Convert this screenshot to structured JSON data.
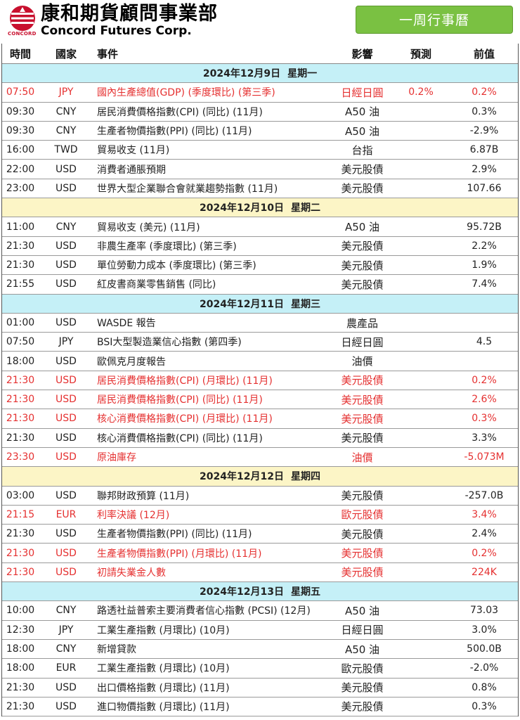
{
  "brand": {
    "name_cn": "康和期貨顧問事業部",
    "name_en": "Concord Futures Corp.",
    "logo_text": "CONCORD",
    "logo_color": "#c8102e"
  },
  "week_button": "一周行事曆",
  "columns": {
    "time": "時間",
    "country": "國家",
    "event": "事件",
    "impact": "影響",
    "forecast": "預測",
    "previous": "前值"
  },
  "days": [
    {
      "date": "2024年12月9日",
      "weekday": "星期一",
      "rows": [
        {
          "time": "07:50",
          "country": "JPY",
          "event": "國內生產總值(GDP) (季度環比) (第三季)",
          "impact": "日經日圓",
          "forecast": "0.2%",
          "previous": "0.2%",
          "highlight": true
        },
        {
          "time": "09:30",
          "country": "CNY",
          "event": "居民消費價格指數(CPI) (同比) (11月)",
          "impact": "A50 油",
          "forecast": "",
          "previous": "0.3%",
          "highlight": false
        },
        {
          "time": "09:30",
          "country": "CNY",
          "event": "生產者物價指數(PPI) (同比) (11月)",
          "impact": "A50 油",
          "forecast": "",
          "previous": "-2.9%",
          "highlight": false
        },
        {
          "time": "16:00",
          "country": "TWD",
          "event": "貿易收支 (11月)",
          "impact": "台指",
          "forecast": "",
          "previous": "6.87B",
          "highlight": false
        },
        {
          "time": "22:00",
          "country": "USD",
          "event": "消費者通脹預期",
          "impact": "美元股債",
          "forecast": "",
          "previous": "2.9%",
          "highlight": false
        },
        {
          "time": "23:00",
          "country": "USD",
          "event": "世界大型企業聯合會就業趨勢指數 (11月)",
          "impact": "美元股債",
          "forecast": "",
          "previous": "107.66",
          "highlight": false
        }
      ]
    },
    {
      "date": "2024年12月10日",
      "weekday": "星期二",
      "rows": [
        {
          "time": "11:00",
          "country": "CNY",
          "event": "貿易收支 (美元) (11月)",
          "impact": "A50 油",
          "forecast": "",
          "previous": "95.72B",
          "highlight": false
        },
        {
          "time": "21:30",
          "country": "USD",
          "event": "非農生產率 (季度環比) (第三季)",
          "impact": "美元股債",
          "forecast": "",
          "previous": "2.2%",
          "highlight": false
        },
        {
          "time": "21:30",
          "country": "USD",
          "event": "單位勞動力成本 (季度環比) (第三季)",
          "impact": "美元股債",
          "forecast": "",
          "previous": "1.9%",
          "highlight": false
        },
        {
          "time": "21:55",
          "country": "USD",
          "event": "紅皮書商業零售銷售 (同比)",
          "impact": "美元股債",
          "forecast": "",
          "previous": "7.4%",
          "highlight": false
        }
      ]
    },
    {
      "date": "2024年12月11日",
      "weekday": "星期三",
      "rows": [
        {
          "time": "01:00",
          "country": "USD",
          "event": "WASDE 報告",
          "impact": "農產品",
          "forecast": "",
          "previous": "",
          "highlight": false
        },
        {
          "time": "07:50",
          "country": "JPY",
          "event": "BSI大型製造業信心指數 (第四季)",
          "impact": "日經日圓",
          "forecast": "",
          "previous": "4.5",
          "highlight": false
        },
        {
          "time": "18:00",
          "country": "USD",
          "event": "歐佩克月度報告",
          "impact": "油價",
          "forecast": "",
          "previous": "",
          "highlight": false
        },
        {
          "time": "21:30",
          "country": "USD",
          "event": "居民消費價格指數(CPI) (月環比) (11月)",
          "impact": "美元股債",
          "forecast": "",
          "previous": "0.2%",
          "highlight": true
        },
        {
          "time": "21:30",
          "country": "USD",
          "event": "居民消費價格指數(CPI) (同比) (11月)",
          "impact": "美元股債",
          "forecast": "",
          "previous": "2.6%",
          "highlight": true
        },
        {
          "time": "21:30",
          "country": "USD",
          "event": "核心消費價格指數(CPI) (月環比) (11月)",
          "impact": "美元股債",
          "forecast": "",
          "previous": "0.3%",
          "highlight": true
        },
        {
          "time": "21:30",
          "country": "USD",
          "event": "核心消費價格指數(CPI) (同比) (11月)",
          "impact": "美元股債",
          "forecast": "",
          "previous": "3.3%",
          "highlight": false
        },
        {
          "time": "23:30",
          "country": "USD",
          "event": "原油庫存",
          "impact": "油價",
          "forecast": "",
          "previous": "-5.073M",
          "highlight": true
        }
      ]
    },
    {
      "date": "2024年12月12日",
      "weekday": "星期四",
      "rows": [
        {
          "time": "03:00",
          "country": "USD",
          "event": "聯邦財政預算 (11月)",
          "impact": "美元股債",
          "forecast": "",
          "previous": "-257.0B",
          "highlight": false
        },
        {
          "time": "21:15",
          "country": "EUR",
          "event": "利率決議 (12月)",
          "impact": "歐元股債",
          "forecast": "",
          "previous": "3.4%",
          "highlight": true
        },
        {
          "time": "21:30",
          "country": "USD",
          "event": "生產者物價指數(PPI) (同比) (11月)",
          "impact": "美元股債",
          "forecast": "",
          "previous": "2.4%",
          "highlight": false
        },
        {
          "time": "21:30",
          "country": "USD",
          "event": "生產者物價指數(PPI) (月環比) (11月)",
          "impact": "美元股債",
          "forecast": "",
          "previous": "0.2%",
          "highlight": true
        },
        {
          "time": "21:30",
          "country": "USD",
          "event": "初請失業金人數",
          "impact": "美元股債",
          "forecast": "",
          "previous": "224K",
          "highlight": true
        }
      ]
    },
    {
      "date": "2024年12月13日",
      "weekday": "星期五",
      "rows": [
        {
          "time": "10:00",
          "country": "CNY",
          "event": "路透社益普索主要消費者信心指數 (PCSI) (12月)",
          "impact": "A50 油",
          "forecast": "",
          "previous": "73.03",
          "highlight": false
        },
        {
          "time": "12:30",
          "country": "JPY",
          "event": "工業生產指數 (月環比) (10月)",
          "impact": "日經日圓",
          "forecast": "",
          "previous": "3.0%",
          "highlight": false
        },
        {
          "time": "18:00",
          "country": "CNY",
          "event": "新增貸款",
          "impact": "A50 油",
          "forecast": "",
          "previous": "500.0B",
          "highlight": false
        },
        {
          "time": "18:00",
          "country": "EUR",
          "event": "工業生產指數 (月環比) (10月)",
          "impact": "歐元股債",
          "forecast": "",
          "previous": "-2.0%",
          "highlight": false
        },
        {
          "time": "21:30",
          "country": "USD",
          "event": "出口價格指數 (月環比) (11月)",
          "impact": "美元股債",
          "forecast": "",
          "previous": "0.8%",
          "highlight": false
        },
        {
          "time": "21:30",
          "country": "USD",
          "event": "進口物價指數 (月環比) (11月)",
          "impact": "美元股債",
          "forecast": "",
          "previous": "0.3%",
          "highlight": false
        }
      ]
    }
  ]
}
